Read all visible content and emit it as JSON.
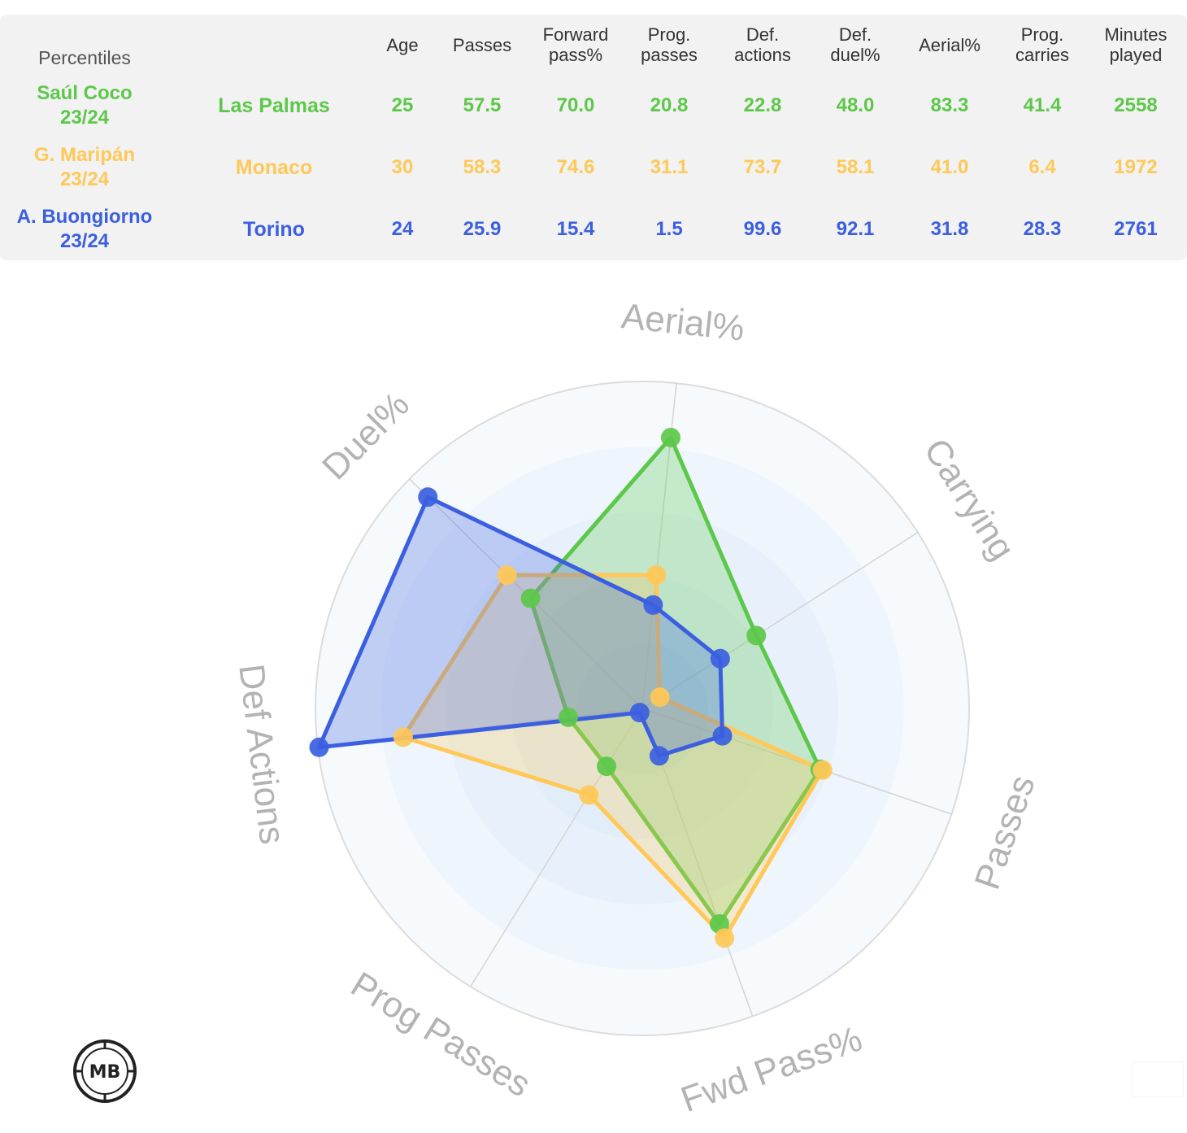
{
  "table": {
    "header_first": "Percentiles",
    "headers": [
      {
        "key": "age",
        "lines": [
          "Age"
        ]
      },
      {
        "key": "passes",
        "lines": [
          "Passes"
        ]
      },
      {
        "key": "fwd",
        "lines": [
          "Forward",
          "pass%"
        ]
      },
      {
        "key": "prog",
        "lines": [
          "Prog.",
          "passes"
        ]
      },
      {
        "key": "defact",
        "lines": [
          "Def.",
          "actions"
        ]
      },
      {
        "key": "defduel",
        "lines": [
          "Def.",
          "duel%"
        ]
      },
      {
        "key": "aerial",
        "lines": [
          "Aerial%"
        ]
      },
      {
        "key": "carries",
        "lines": [
          "Prog.",
          "carries"
        ]
      },
      {
        "key": "minutes",
        "lines": [
          "Minutes",
          "played"
        ]
      }
    ],
    "rows": [
      {
        "player_lines": [
          "Saúl Coco",
          "23/24"
        ],
        "team": "Las Palmas",
        "color": "#5cc84a",
        "values": [
          "25",
          "57.5",
          "70.0",
          "20.8",
          "22.8",
          "48.0",
          "83.3",
          "41.4",
          "2558"
        ]
      },
      {
        "player_lines": [
          "G. Maripán",
          "23/24"
        ],
        "team": "Monaco",
        "color": "#ffc857",
        "values": [
          "30",
          "58.3",
          "74.6",
          "31.1",
          "73.7",
          "58.1",
          "41.0",
          "6.4",
          "1972"
        ]
      },
      {
        "player_lines": [
          "A. Buongiorno",
          "23/24"
        ],
        "team": "Torino",
        "color": "#3b5fe0",
        "values": [
          "24",
          "25.9",
          "15.4",
          "1.5",
          "99.6",
          "92.1",
          "31.8",
          "28.3",
          "2761"
        ]
      }
    ]
  },
  "chart_data": {
    "type": "radar",
    "axes": [
      "Aerial%",
      "Carrying",
      "Passes",
      "Fwd Pass%",
      "Prog Passes",
      "Def Actions",
      "Duel%"
    ],
    "range": [
      0,
      100
    ],
    "grid": true,
    "series": [
      {
        "name": "Saúl Coco",
        "color": "#5cc84a",
        "values": [
          83.3,
          41.4,
          57.5,
          70.0,
          20.8,
          22.8,
          48.0
        ]
      },
      {
        "name": "G. Maripán",
        "color": "#ffc857",
        "values": [
          41.0,
          6.4,
          58.3,
          74.6,
          31.1,
          73.7,
          58.1
        ]
      },
      {
        "name": "A. Buongiorno",
        "color": "#3b5fe0",
        "values": [
          31.8,
          28.3,
          25.9,
          15.4,
          1.5,
          99.6,
          92.1
        ]
      }
    ]
  },
  "logo": {
    "text": "MB"
  }
}
